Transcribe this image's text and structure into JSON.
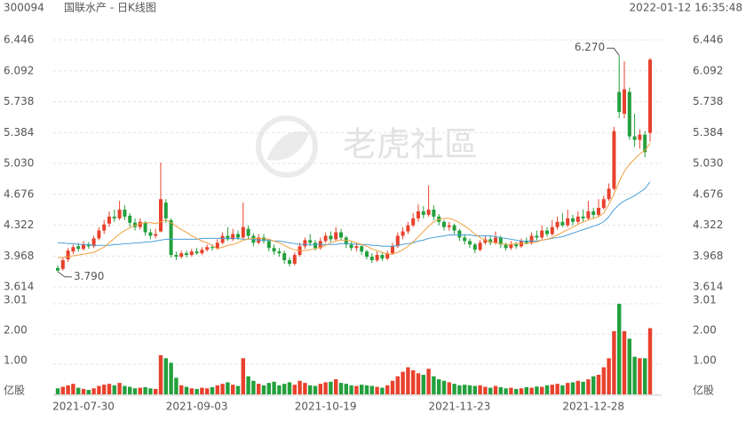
{
  "header": {
    "code": "300094",
    "title": "国联水产 - 日K线图",
    "timestamp": "2022-01-12 16:35:48"
  },
  "watermark": "老虎社區",
  "chart_data": {
    "type": "candlestick",
    "categories": [
      null,
      null,
      null,
      null,
      null,
      "2021-07-30",
      null,
      null,
      null,
      null,
      null,
      null,
      null,
      null,
      null,
      null,
      null,
      null,
      null,
      null,
      null,
      null,
      null,
      null,
      null,
      null,
      null,
      "2021-09-03",
      null,
      null,
      null,
      null,
      null,
      null,
      null,
      null,
      null,
      null,
      null,
      null,
      null,
      null,
      null,
      null,
      null,
      null,
      null,
      null,
      null,
      null,
      null,
      null,
      "2021-10-19",
      null,
      null,
      null,
      null,
      null,
      null,
      null,
      null,
      null,
      null,
      null,
      null,
      null,
      null,
      null,
      null,
      null,
      null,
      null,
      null,
      null,
      null,
      null,
      null,
      null,
      "2021-11-23",
      null,
      null,
      null,
      null,
      null,
      null,
      null,
      null,
      null,
      null,
      null,
      null,
      null,
      null,
      null,
      null,
      null,
      null,
      null,
      null,
      null,
      null,
      null,
      null,
      null,
      "2021-12-28",
      null,
      null,
      null,
      null,
      null,
      null,
      null,
      null,
      null,
      null,
      null
    ],
    "open": [
      3.83,
      3.82,
      3.93,
      4.02,
      4.08,
      4.05,
      4.1,
      4.08,
      4.17,
      4.26,
      4.34,
      4.42,
      4.4,
      4.5,
      4.43,
      4.35,
      4.3,
      4.35,
      4.24,
      4.2,
      4.25,
      4.58,
      4.38,
      3.98,
      3.96,
      4.0,
      3.98,
      4.02,
      4.0,
      4.04,
      4.07,
      4.06,
      4.12,
      4.2,
      4.16,
      4.22,
      4.18,
      4.28,
      4.2,
      4.12,
      4.18,
      4.14,
      4.06,
      4.02,
      4.0,
      3.92,
      3.88,
      3.98,
      4.08,
      4.15,
      4.12,
      4.06,
      4.14,
      4.2,
      4.16,
      4.24,
      4.18,
      4.1,
      4.06,
      4.08,
      4.02,
      3.96,
      3.92,
      3.98,
      3.94,
      4.0,
      4.08,
      4.2,
      4.25,
      4.32,
      4.4,
      4.48,
      4.44,
      4.5,
      4.42,
      4.36,
      4.3,
      4.32,
      4.26,
      4.18,
      4.14,
      4.1,
      4.04,
      4.12,
      4.16,
      4.12,
      4.18,
      4.1,
      4.06,
      4.1,
      4.08,
      4.14,
      4.12,
      4.2,
      4.18,
      4.26,
      4.22,
      4.3,
      4.36,
      4.32,
      4.4,
      4.36,
      4.42,
      4.4,
      4.48,
      4.44,
      4.52,
      4.62,
      4.74,
      5.85,
      5.6,
      5.85,
      5.34,
      5.3,
      5.36,
      5.38
    ],
    "high": [
      3.86,
      3.95,
      4.06,
      4.1,
      4.12,
      4.14,
      4.13,
      4.2,
      4.3,
      4.38,
      4.48,
      4.5,
      4.6,
      4.55,
      4.46,
      4.4,
      4.4,
      4.37,
      4.28,
      4.28,
      5.04,
      4.62,
      4.4,
      4.02,
      4.03,
      4.03,
      4.05,
      4.06,
      4.07,
      4.1,
      4.1,
      4.16,
      4.24,
      4.3,
      4.28,
      4.26,
      4.58,
      4.32,
      4.23,
      4.22,
      4.22,
      4.16,
      4.1,
      4.06,
      4.03,
      3.95,
      4.01,
      4.12,
      4.18,
      4.22,
      4.15,
      4.18,
      4.24,
      4.25,
      4.3,
      4.28,
      4.2,
      4.13,
      4.12,
      4.1,
      4.04,
      4.0,
      4.02,
      4.01,
      4.03,
      4.12,
      4.24,
      4.3,
      4.36,
      4.46,
      4.56,
      4.54,
      4.78,
      4.55,
      4.45,
      4.38,
      4.36,
      4.34,
      4.28,
      4.22,
      4.17,
      4.12,
      4.15,
      4.2,
      4.2,
      4.25,
      4.2,
      4.12,
      4.14,
      4.13,
      4.17,
      4.18,
      4.24,
      4.26,
      4.32,
      4.3,
      4.38,
      4.42,
      4.46,
      4.5,
      4.44,
      4.48,
      4.5,
      4.6,
      4.52,
      4.62,
      4.66,
      4.8,
      5.45,
      6.27,
      6.2,
      5.9,
      5.6,
      5.42,
      5.4,
      6.24
    ],
    "low": [
      3.79,
      3.8,
      3.9,
      3.99,
      4.02,
      4.03,
      4.05,
      4.06,
      4.15,
      4.22,
      4.3,
      4.36,
      4.38,
      4.38,
      4.3,
      4.26,
      4.27,
      4.2,
      4.16,
      4.17,
      4.24,
      4.35,
      3.95,
      3.92,
      3.94,
      3.95,
      3.96,
      3.98,
      3.98,
      4.02,
      4.03,
      4.04,
      4.1,
      4.14,
      4.14,
      4.15,
      4.17,
      4.16,
      4.08,
      4.1,
      4.11,
      4.02,
      3.98,
      3.96,
      3.88,
      3.85,
      3.86,
      3.96,
      4.05,
      4.08,
      4.03,
      4.04,
      4.12,
      4.13,
      4.14,
      4.15,
      4.06,
      4.03,
      4.02,
      3.98,
      3.93,
      3.89,
      3.9,
      3.91,
      3.92,
      3.98,
      4.06,
      4.16,
      4.22,
      4.3,
      4.36,
      4.4,
      4.42,
      4.38,
      4.32,
      4.26,
      4.26,
      4.22,
      4.14,
      4.1,
      4.06,
      4.0,
      4.02,
      4.1,
      4.09,
      4.1,
      4.06,
      4.03,
      4.04,
      4.05,
      4.06,
      4.1,
      4.1,
      4.15,
      4.16,
      4.19,
      4.2,
      4.27,
      4.3,
      4.3,
      4.32,
      4.34,
      4.36,
      4.38,
      4.4,
      4.42,
      4.5,
      4.6,
      4.72,
      5.55,
      5.55,
      5.3,
      5.22,
      5.2,
      5.1,
      5.28
    ],
    "close": [
      3.8,
      3.92,
      4.03,
      4.07,
      4.05,
      4.1,
      4.08,
      4.17,
      4.26,
      4.33,
      4.42,
      4.4,
      4.5,
      4.42,
      4.35,
      4.3,
      4.36,
      4.24,
      4.2,
      4.22,
      4.62,
      4.4,
      3.98,
      3.96,
      4.0,
      3.98,
      4.02,
      4.0,
      4.04,
      4.07,
      4.06,
      4.12,
      4.2,
      4.16,
      4.22,
      4.18,
      4.3,
      4.2,
      4.12,
      4.18,
      4.14,
      4.06,
      4.02,
      4.0,
      3.92,
      3.88,
      3.98,
      4.08,
      4.15,
      4.12,
      4.06,
      4.14,
      4.2,
      4.16,
      4.24,
      4.18,
      4.1,
      4.06,
      4.08,
      4.02,
      3.96,
      3.92,
      3.98,
      3.94,
      4.0,
      4.08,
      4.2,
      4.25,
      4.32,
      4.4,
      4.48,
      4.44,
      4.5,
      4.42,
      4.36,
      4.3,
      4.32,
      4.26,
      4.18,
      4.14,
      4.1,
      4.04,
      4.12,
      4.16,
      4.12,
      4.18,
      4.1,
      4.06,
      4.1,
      4.08,
      4.14,
      4.12,
      4.2,
      4.18,
      4.26,
      4.22,
      4.3,
      4.36,
      4.32,
      4.4,
      4.36,
      4.42,
      4.4,
      4.48,
      4.44,
      4.52,
      4.62,
      4.74,
      5.4,
      5.62,
      5.88,
      5.34,
      5.3,
      5.36,
      5.16,
      6.22
    ],
    "volume": [
      0.2,
      0.25,
      0.3,
      0.35,
      0.22,
      0.18,
      0.15,
      0.2,
      0.28,
      0.32,
      0.35,
      0.3,
      0.38,
      0.28,
      0.25,
      0.2,
      0.22,
      0.24,
      0.2,
      0.18,
      1.3,
      1.2,
      1.05,
      0.55,
      0.3,
      0.25,
      0.2,
      0.18,
      0.22,
      0.2,
      0.24,
      0.3,
      0.35,
      0.4,
      0.32,
      0.28,
      1.2,
      0.6,
      0.45,
      0.35,
      0.3,
      0.38,
      0.42,
      0.3,
      0.35,
      0.4,
      0.32,
      0.45,
      0.38,
      0.3,
      0.28,
      0.35,
      0.4,
      0.42,
      0.5,
      0.38,
      0.35,
      0.3,
      0.28,
      0.32,
      0.3,
      0.28,
      0.25,
      0.22,
      0.3,
      0.45,
      0.6,
      0.75,
      0.9,
      0.8,
      0.7,
      0.65,
      0.85,
      0.6,
      0.5,
      0.45,
      0.4,
      0.35,
      0.3,
      0.32,
      0.3,
      0.28,
      0.3,
      0.25,
      0.22,
      0.28,
      0.24,
      0.2,
      0.22,
      0.18,
      0.2,
      0.24,
      0.22,
      0.26,
      0.25,
      0.3,
      0.32,
      0.35,
      0.3,
      0.38,
      0.4,
      0.45,
      0.42,
      0.5,
      0.6,
      0.65,
      0.9,
      1.2,
      2.1,
      3.01,
      2.1,
      1.85,
      1.25,
      1.2,
      1.2,
      2.2
    ],
    "lines": [
      {
        "color": "#4a9fd8",
        "values": [
          4.12,
          4.12,
          4.11,
          4.11,
          4.1,
          4.1,
          4.1,
          4.09,
          4.09,
          4.09,
          4.09,
          4.1,
          4.1,
          4.11,
          4.11,
          4.12,
          4.12,
          4.13,
          4.13,
          4.14,
          4.15,
          4.16,
          4.16,
          4.16,
          4.16,
          4.16,
          4.16,
          4.16,
          4.17,
          4.17,
          4.17,
          4.17,
          4.17,
          4.17,
          4.17,
          4.17,
          4.16,
          4.16,
          4.16,
          4.15,
          4.15,
          4.15,
          4.14,
          4.14,
          4.13,
          4.12,
          4.11,
          4.1,
          4.1,
          4.1,
          4.1,
          4.1,
          4.1,
          4.1,
          4.1,
          4.11,
          4.11,
          4.11,
          4.1,
          4.1,
          4.1,
          4.09,
          4.09,
          4.08,
          4.08,
          4.08,
          4.09,
          4.1,
          4.11,
          4.12,
          4.14,
          4.15,
          4.17,
          4.18,
          4.19,
          4.2,
          4.21,
          4.21,
          4.21,
          4.21,
          4.21,
          4.2,
          4.2,
          4.2,
          4.2,
          4.19,
          4.18,
          4.17,
          4.16,
          4.15,
          4.14,
          4.14,
          4.14,
          4.14,
          4.15,
          4.16,
          4.17,
          4.18,
          4.19,
          4.21,
          4.23,
          4.25,
          4.27,
          4.29,
          4.31,
          4.33,
          4.36,
          4.42,
          4.5,
          4.56,
          4.6,
          4.63,
          4.66,
          4.7,
          4.74,
          4.82
        ]
      },
      {
        "color": "#f0a040",
        "values": [
          3.95,
          3.95,
          3.96,
          3.97,
          3.98,
          3.99,
          4.0,
          4.01,
          4.04,
          4.07,
          4.12,
          4.17,
          4.22,
          4.26,
          4.29,
          4.32,
          4.34,
          4.35,
          4.35,
          4.34,
          4.36,
          4.38,
          4.35,
          4.31,
          4.27,
          4.24,
          4.2,
          4.17,
          4.14,
          4.12,
          4.09,
          4.05,
          4.07,
          4.09,
          4.1,
          4.12,
          4.15,
          4.16,
          4.17,
          4.17,
          4.17,
          4.16,
          4.14,
          4.12,
          4.09,
          4.06,
          4.04,
          4.03,
          4.03,
          4.04,
          4.05,
          4.07,
          4.09,
          4.12,
          4.14,
          4.15,
          4.15,
          4.14,
          4.12,
          4.1,
          4.08,
          4.05,
          4.03,
          4.01,
          3.99,
          3.99,
          4.01,
          4.04,
          4.08,
          4.13,
          4.19,
          4.25,
          4.31,
          4.36,
          4.39,
          4.4,
          4.4,
          4.38,
          4.35,
          4.31,
          4.27,
          4.22,
          4.18,
          4.15,
          4.13,
          4.12,
          4.11,
          4.1,
          4.1,
          4.11,
          4.11,
          4.11,
          4.12,
          4.13,
          4.15,
          4.16,
          4.18,
          4.21,
          4.24,
          4.27,
          4.3,
          4.33,
          4.36,
          4.38,
          4.4,
          4.42,
          4.46,
          4.56,
          4.68,
          4.82,
          4.94,
          5.02,
          5.08,
          5.14,
          5.18,
          5.26
        ]
      }
    ],
    "ylim": [
      3.614,
      6.446
    ],
    "yticks": [
      3.614,
      3.968,
      4.322,
      4.676,
      {
        "value": 5.03,
        "label": "5.030"
      },
      5.384,
      5.738,
      6.092,
      6.446
    ],
    "volume_lim": [
      0,
      3.01
    ],
    "volume_ticks": [
      {
        "value": 0,
        "label": "亿股"
      },
      {
        "value": 1,
        "label": "1.00"
      },
      {
        "value": 2,
        "label": "2.00"
      },
      3.01
    ],
    "high_label": "6.270",
    "low_label": "3.790",
    "up_color": "#e8412c",
    "down_color": "#23a03c",
    "grid": true
  }
}
